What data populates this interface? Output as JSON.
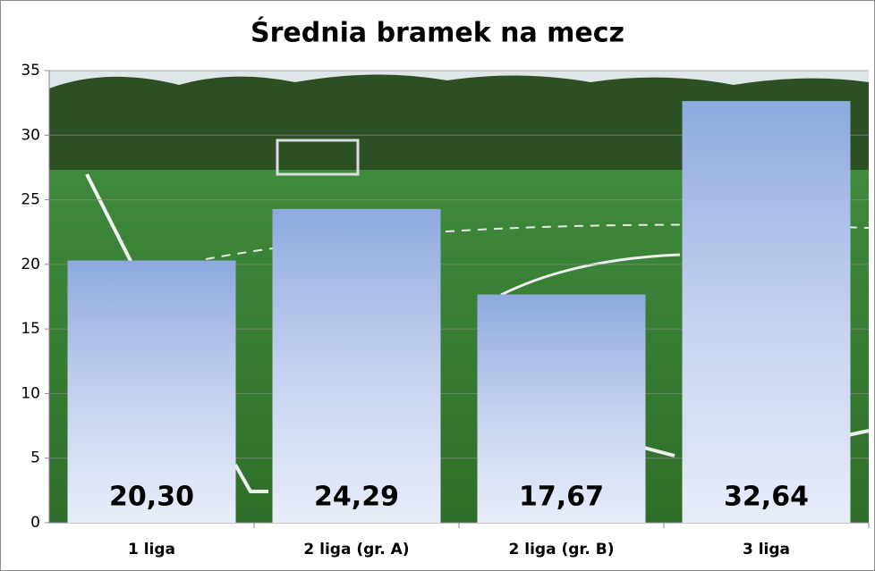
{
  "chart_data": {
    "type": "bar",
    "title": "Średnia bramek na mecz",
    "categories": [
      "1 liga",
      "2 liga (gr. A)",
      "2 liga (gr. B)",
      "3 liga"
    ],
    "values": [
      20.3,
      24.29,
      17.67,
      32.64
    ],
    "value_labels": [
      "20,30",
      "24,29",
      "17,67",
      "32,64"
    ],
    "ylim": [
      0,
      35
    ],
    "yticks": [
      0,
      5,
      10,
      15,
      20,
      25,
      30,
      35
    ],
    "grid": true
  }
}
